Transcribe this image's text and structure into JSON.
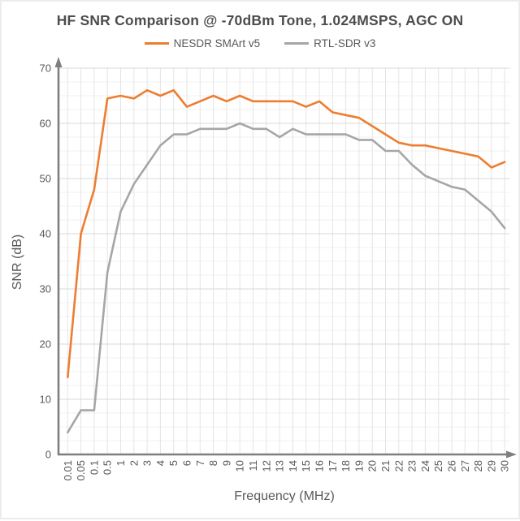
{
  "chart_data": {
    "type": "line",
    "title": "HF SNR Comparison @ -70dBm Tone, 1.024MSPS, AGC ON",
    "xlabel": "Frequency (MHz)",
    "ylabel": "SNR (dB)",
    "ylim": [
      0,
      70
    ],
    "y_major_ticks": [
      0,
      10,
      20,
      30,
      40,
      50,
      60,
      70
    ],
    "y_minor_step": 2.5,
    "grid": true,
    "legend_position": "top",
    "x_tick_rotation": -90,
    "categories": [
      "0.01",
      "0.05",
      "0.1",
      "0.5",
      "1",
      "2",
      "3",
      "4",
      "5",
      "6",
      "7",
      "8",
      "9",
      "10",
      "11",
      "12",
      "13",
      "14",
      "15",
      "16",
      "17",
      "18",
      "19",
      "20",
      "21",
      "22",
      "23",
      "24",
      "25",
      "26",
      "27",
      "28",
      "29",
      "30"
    ],
    "series": [
      {
        "name": "NESDR SMArt v5",
        "color": "#ED7D31",
        "values": [
          14,
          40,
          48,
          64.5,
          65,
          64.5,
          66,
          65,
          66,
          63,
          64,
          65,
          64,
          65,
          64,
          64,
          64,
          64,
          63,
          64,
          62,
          61.5,
          61,
          59.5,
          58,
          56.5,
          56,
          56,
          55.5,
          55,
          54.5,
          54,
          52,
          53
        ]
      },
      {
        "name": "RTL-SDR v3",
        "color": "#A6A6A6",
        "values": [
          4,
          8,
          8,
          33,
          44,
          49,
          52.5,
          56,
          58,
          58,
          59,
          59,
          59,
          60,
          59,
          59,
          57.5,
          59,
          58,
          58,
          58,
          58,
          57,
          57,
          55,
          55,
          52.5,
          50.5,
          49.5,
          48.5,
          48,
          46,
          44,
          41
        ]
      }
    ]
  },
  "colors": {
    "title_text": "#4d4d4d",
    "axis_text": "#595959",
    "axis_line": "#7f7f7f",
    "grid_major": "#d9d9d9",
    "grid_vertical": "#e4e4e4",
    "grid_minor": "#f2f2f2",
    "background": "#ffffff"
  }
}
